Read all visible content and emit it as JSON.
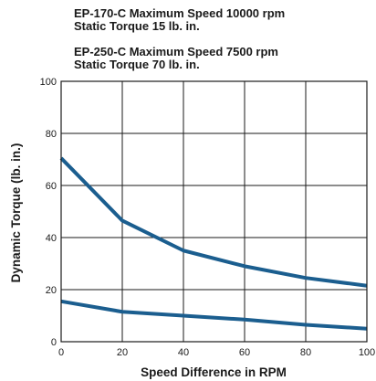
{
  "chart_data": {
    "type": "line",
    "captions": [
      "EP-170-C Maximum Speed 10000 rpm",
      "Static Torque 15 lb. in.",
      "EP-250-C Maximum Speed 7500 rpm",
      "Static Torque 70 lb. in."
    ],
    "xlabel": "Speed Difference in RPM",
    "ylabel": "Dynamic Torque (lb. in.)",
    "xlim": [
      0,
      100
    ],
    "ylim": [
      0,
      100
    ],
    "xticks": [
      0,
      20,
      40,
      60,
      80,
      100
    ],
    "yticks": [
      0,
      20,
      40,
      60,
      80,
      100
    ],
    "grid": true,
    "series": [
      {
        "x": [
          0,
          20,
          40,
          60,
          80,
          100
        ],
        "y": [
          70.5,
          46.5,
          35,
          29,
          24.5,
          21.5
        ],
        "color": "#1b5e8f"
      },
      {
        "x": [
          0,
          20,
          40,
          60,
          80,
          100
        ],
        "y": [
          15.5,
          11.5,
          10,
          8.5,
          6.5,
          5
        ],
        "color": "#1b5e8f"
      }
    ]
  }
}
